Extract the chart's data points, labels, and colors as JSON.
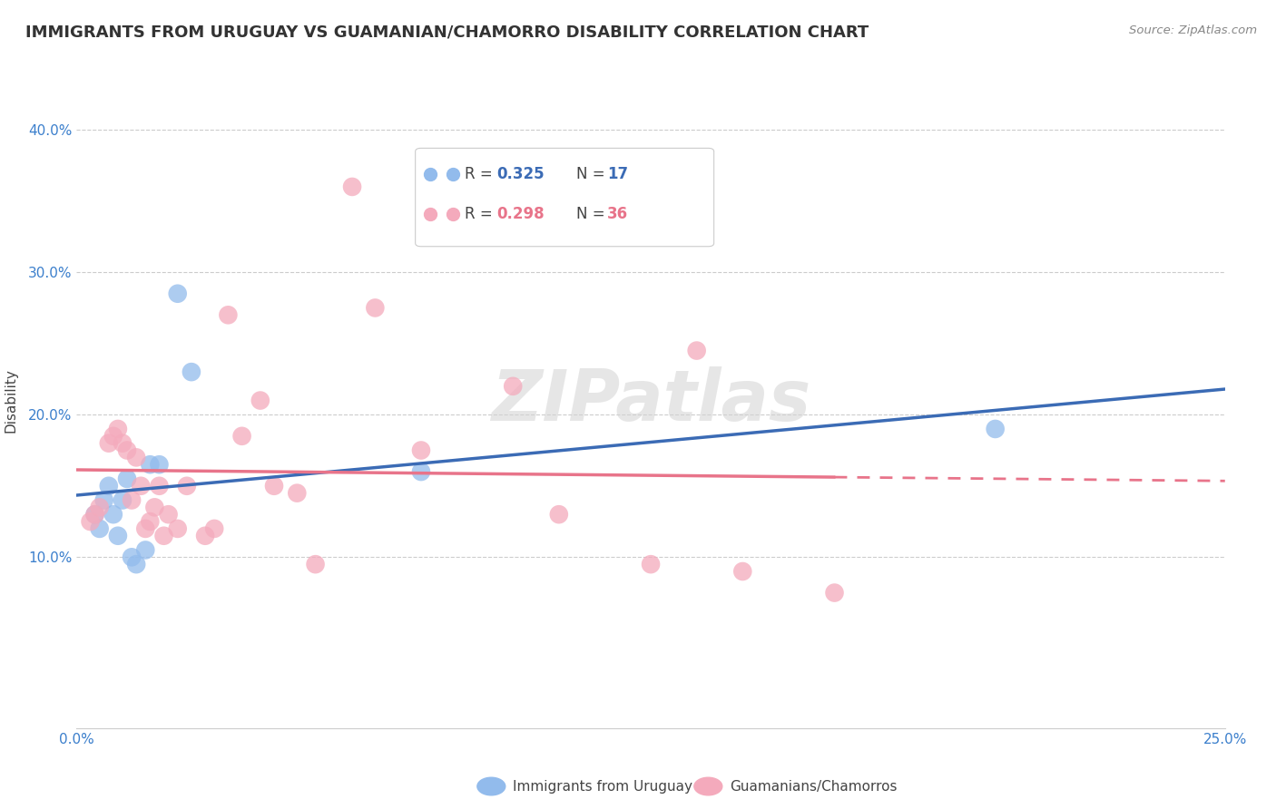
{
  "title": "IMMIGRANTS FROM URUGUAY VS GUAMANIAN/CHAMORRO DISABILITY CORRELATION CHART",
  "source": "Source: ZipAtlas.com",
  "ylabel": "Disability",
  "xlim": [
    0.0,
    0.25
  ],
  "ylim": [
    -0.02,
    0.44
  ],
  "yticks": [
    0.0,
    0.1,
    0.2,
    0.3,
    0.4
  ],
  "ytick_labels": [
    "",
    "10.0%",
    "20.0%",
    "30.0%",
    "40.0%"
  ],
  "xticks": [
    0.0,
    0.05,
    0.1,
    0.15,
    0.2,
    0.25
  ],
  "xtick_labels": [
    "0.0%",
    "",
    "",
    "",
    "",
    "25.0%"
  ],
  "blue_R": "0.325",
  "blue_N": "17",
  "pink_R": "0.298",
  "pink_N": "36",
  "blue_label": "Immigrants from Uruguay",
  "pink_label": "Guamanians/Chamorros",
  "watermark": "ZIPatlas",
  "blue_color": "#92BBEC",
  "pink_color": "#F4AABC",
  "blue_line_color": "#3B6BB5",
  "pink_line_color": "#E8748A",
  "blue_scatter_x": [
    0.004,
    0.005,
    0.006,
    0.007,
    0.008,
    0.009,
    0.01,
    0.011,
    0.012,
    0.013,
    0.015,
    0.016,
    0.018,
    0.022,
    0.025,
    0.2,
    0.075
  ],
  "blue_scatter_y": [
    0.13,
    0.12,
    0.14,
    0.15,
    0.13,
    0.115,
    0.14,
    0.155,
    0.1,
    0.095,
    0.105,
    0.165,
    0.165,
    0.285,
    0.23,
    0.19,
    0.16
  ],
  "pink_scatter_x": [
    0.003,
    0.004,
    0.005,
    0.007,
    0.008,
    0.009,
    0.01,
    0.011,
    0.012,
    0.013,
    0.014,
    0.015,
    0.016,
    0.017,
    0.018,
    0.019,
    0.02,
    0.022,
    0.024,
    0.028,
    0.03,
    0.033,
    0.036,
    0.04,
    0.043,
    0.048,
    0.052,
    0.06,
    0.065,
    0.095,
    0.105,
    0.125,
    0.145,
    0.165,
    0.135,
    0.075
  ],
  "pink_scatter_y": [
    0.125,
    0.13,
    0.135,
    0.18,
    0.185,
    0.19,
    0.18,
    0.175,
    0.14,
    0.17,
    0.15,
    0.12,
    0.125,
    0.135,
    0.15,
    0.115,
    0.13,
    0.12,
    0.15,
    0.115,
    0.12,
    0.27,
    0.185,
    0.21,
    0.15,
    0.145,
    0.095,
    0.36,
    0.275,
    0.22,
    0.13,
    0.095,
    0.09,
    0.075,
    0.245,
    0.175
  ],
  "grid_color": "#CCCCCC",
  "background_color": "#FFFFFF",
  "title_fontsize": 13,
  "axis_label_fontsize": 11,
  "tick_fontsize": 11,
  "legend_fontsize": 13
}
